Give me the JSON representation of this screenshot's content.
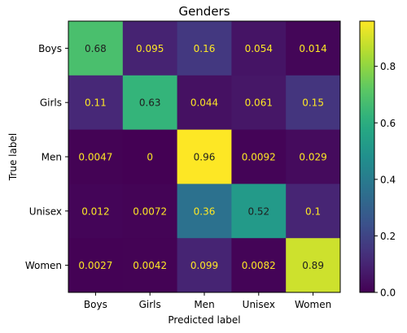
{
  "chart_data": {
    "type": "heatmap",
    "title": "Genders",
    "xlabel": "Predicted label",
    "ylabel": "True label",
    "x_categories": [
      "Boys",
      "Girls",
      "Men",
      "Unisex",
      "Women"
    ],
    "y_categories": [
      "Boys",
      "Girls",
      "Men",
      "Unisex",
      "Women"
    ],
    "matrix": [
      [
        0.68,
        0.095,
        0.16,
        0.054,
        0.014
      ],
      [
        0.11,
        0.63,
        0.044,
        0.061,
        0.15
      ],
      [
        0.0047,
        0,
        0.96,
        0.0092,
        0.029
      ],
      [
        0.012,
        0.0072,
        0.36,
        0.52,
        0.1
      ],
      [
        0.0027,
        0.0042,
        0.099,
        0.0082,
        0.89
      ]
    ],
    "cell_labels": [
      [
        "0.68",
        "0.095",
        "0.16",
        "0.054",
        "0.014"
      ],
      [
        "0.11",
        "0.63",
        "0.044",
        "0.061",
        "0.15"
      ],
      [
        "0.0047",
        "0",
        "0.96",
        "0.0092",
        "0.029"
      ],
      [
        "0.012",
        "0.0072",
        "0.36",
        "0.52",
        "0.1"
      ],
      [
        "0.0027",
        "0.0042",
        "0.099",
        "0.0082",
        "0.89"
      ]
    ],
    "colorbar": {
      "range": [
        0,
        0.96
      ],
      "ticks": [
        0.0,
        0.2,
        0.4,
        0.6,
        0.8
      ],
      "tick_labels": [
        "0.0",
        "0.2",
        "0.4",
        "0.6",
        "0.8"
      ]
    },
    "colormap": "viridis",
    "grid": false
  }
}
